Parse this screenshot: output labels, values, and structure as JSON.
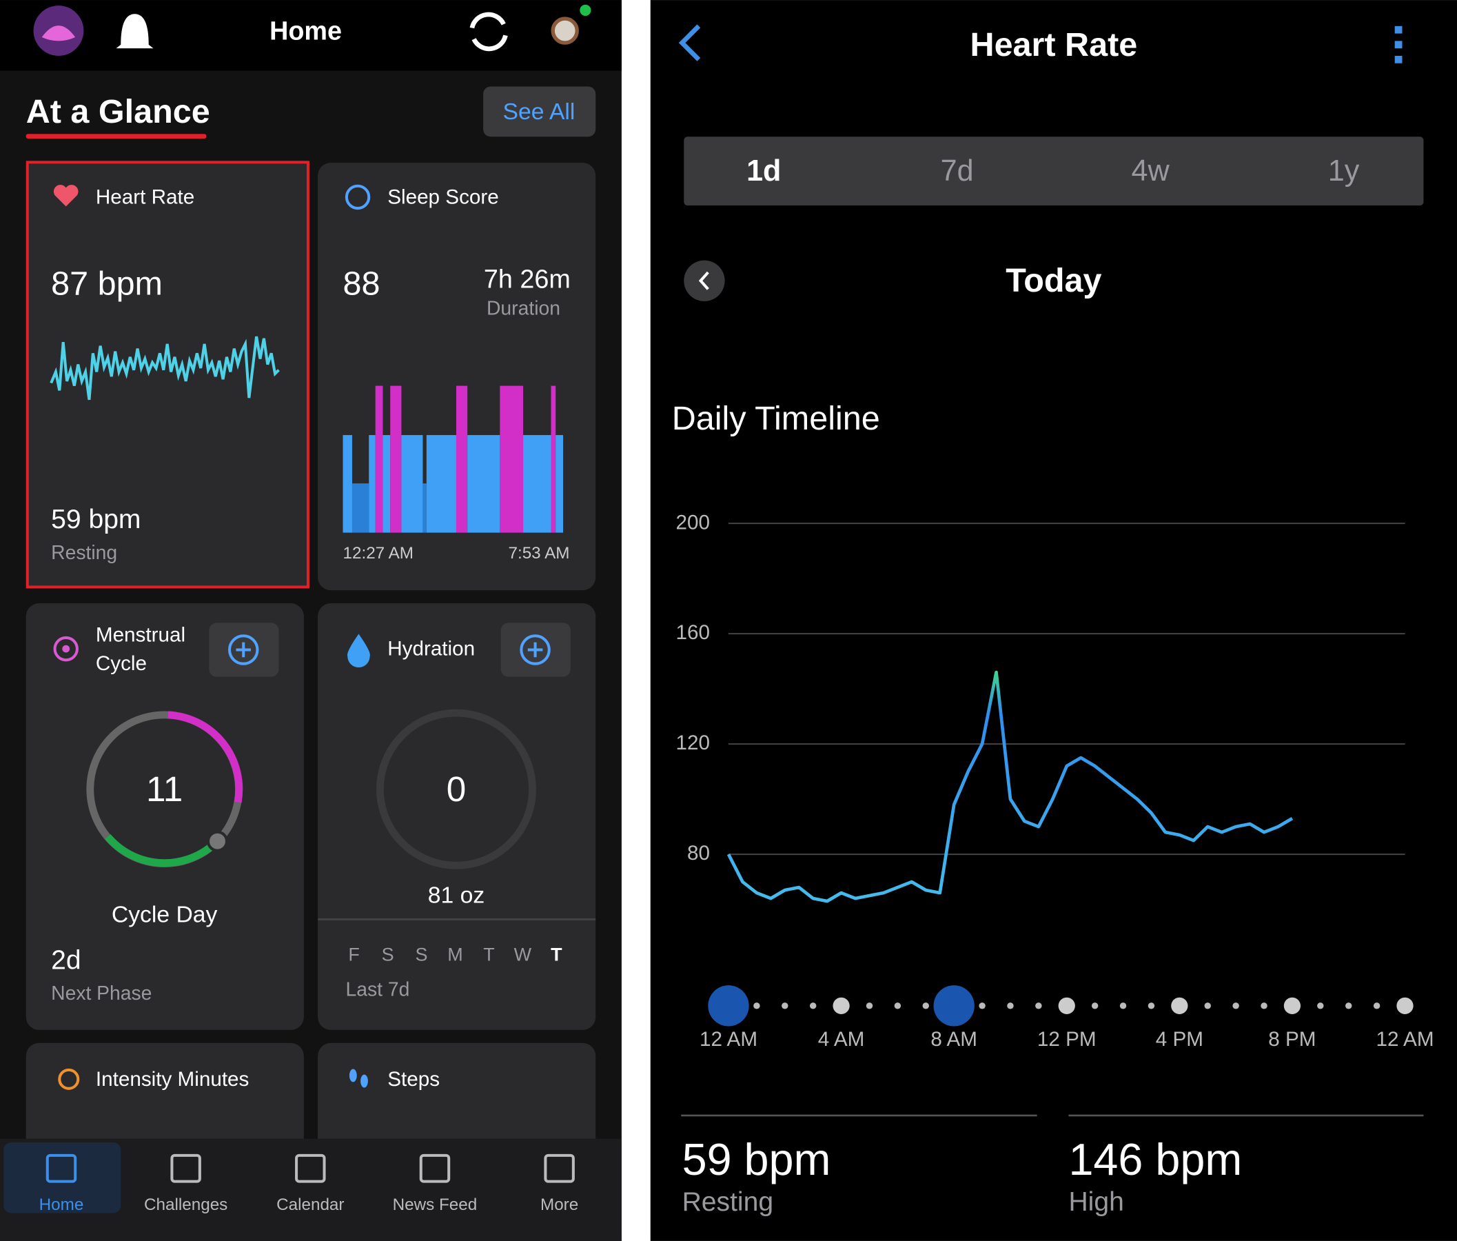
{
  "left": {
    "top_bar": {
      "title": "Home"
    },
    "glance": {
      "title": "At a Glance",
      "see_all": "See All"
    },
    "heart_card": {
      "title": "Heart Rate",
      "current": "87 bpm",
      "resting": "59 bpm",
      "resting_label": "Resting"
    },
    "sleep_card": {
      "title": "Sleep Score",
      "score": "88",
      "duration": "7h 26m",
      "duration_label": "Duration",
      "start": "12:27 AM",
      "end": "7:53 AM"
    },
    "cycle_card": {
      "title_lines": [
        "Menstrual",
        "Cycle"
      ],
      "day": "11",
      "day_label": "Cycle Day",
      "next": "2d",
      "next_label": "Next Phase"
    },
    "hydration_card": {
      "title": "Hydration",
      "amount": "0",
      "goal": "81 oz",
      "days": [
        "F",
        "S",
        "S",
        "M",
        "T",
        "W",
        "T"
      ],
      "period": "Last 7d"
    },
    "intensity_card": {
      "title": "Intensity Minutes"
    },
    "steps_card": {
      "title": "Steps"
    },
    "nav": [
      "Home",
      "Challenges",
      "Calendar",
      "News Feed",
      "More"
    ]
  },
  "right": {
    "title": "Heart Rate",
    "tabs": [
      "1d",
      "7d",
      "4w",
      "1y"
    ],
    "period": "Today",
    "stats": [
      {
        "value": "59 bpm",
        "label": "Resting"
      },
      {
        "value": "146 bpm",
        "label": "High"
      }
    ]
  },
  "chart_data": {
    "type": "line",
    "title": "Daily Timeline",
    "x": [
      0,
      0.5,
      1,
      1.5,
      2,
      2.5,
      3,
      3.5,
      4,
      4.5,
      5,
      5.5,
      6,
      6.5,
      7,
      7.5,
      8,
      8.5,
      9,
      9.5,
      10,
      10.5,
      11,
      11.5,
      12,
      12.5,
      13,
      13.5,
      14,
      14.5,
      15,
      15.5,
      16,
      16.5,
      17,
      17.5,
      18,
      18.5,
      19,
      19.5,
      20
    ],
    "series": [
      {
        "name": "Heart Rate",
        "color": "#2f8ef0",
        "values": [
          80,
          70,
          66,
          64,
          67,
          68,
          64,
          63,
          66,
          64,
          65,
          66,
          68,
          70,
          67,
          66,
          98,
          110,
          120,
          146,
          100,
          92,
          90,
          100,
          112,
          115,
          112,
          108,
          104,
          100,
          95,
          88,
          87,
          85,
          90,
          88,
          90,
          91,
          88,
          90,
          93
        ]
      }
    ],
    "xlim": [
      0,
      24
    ],
    "xticks": [
      {
        "value": 0,
        "label": "12 AM"
      },
      {
        "value": 4,
        "label": "4 AM"
      },
      {
        "value": 8,
        "label": "8 AM"
      },
      {
        "value": 12,
        "label": "12 PM"
      },
      {
        "value": 16,
        "label": "4 PM"
      },
      {
        "value": 20,
        "label": "8 PM"
      },
      {
        "value": 24,
        "label": "12 AM"
      }
    ],
    "ylim": [
      50,
      200
    ],
    "yticks": [
      80,
      120,
      160,
      200
    ],
    "grid": true
  }
}
